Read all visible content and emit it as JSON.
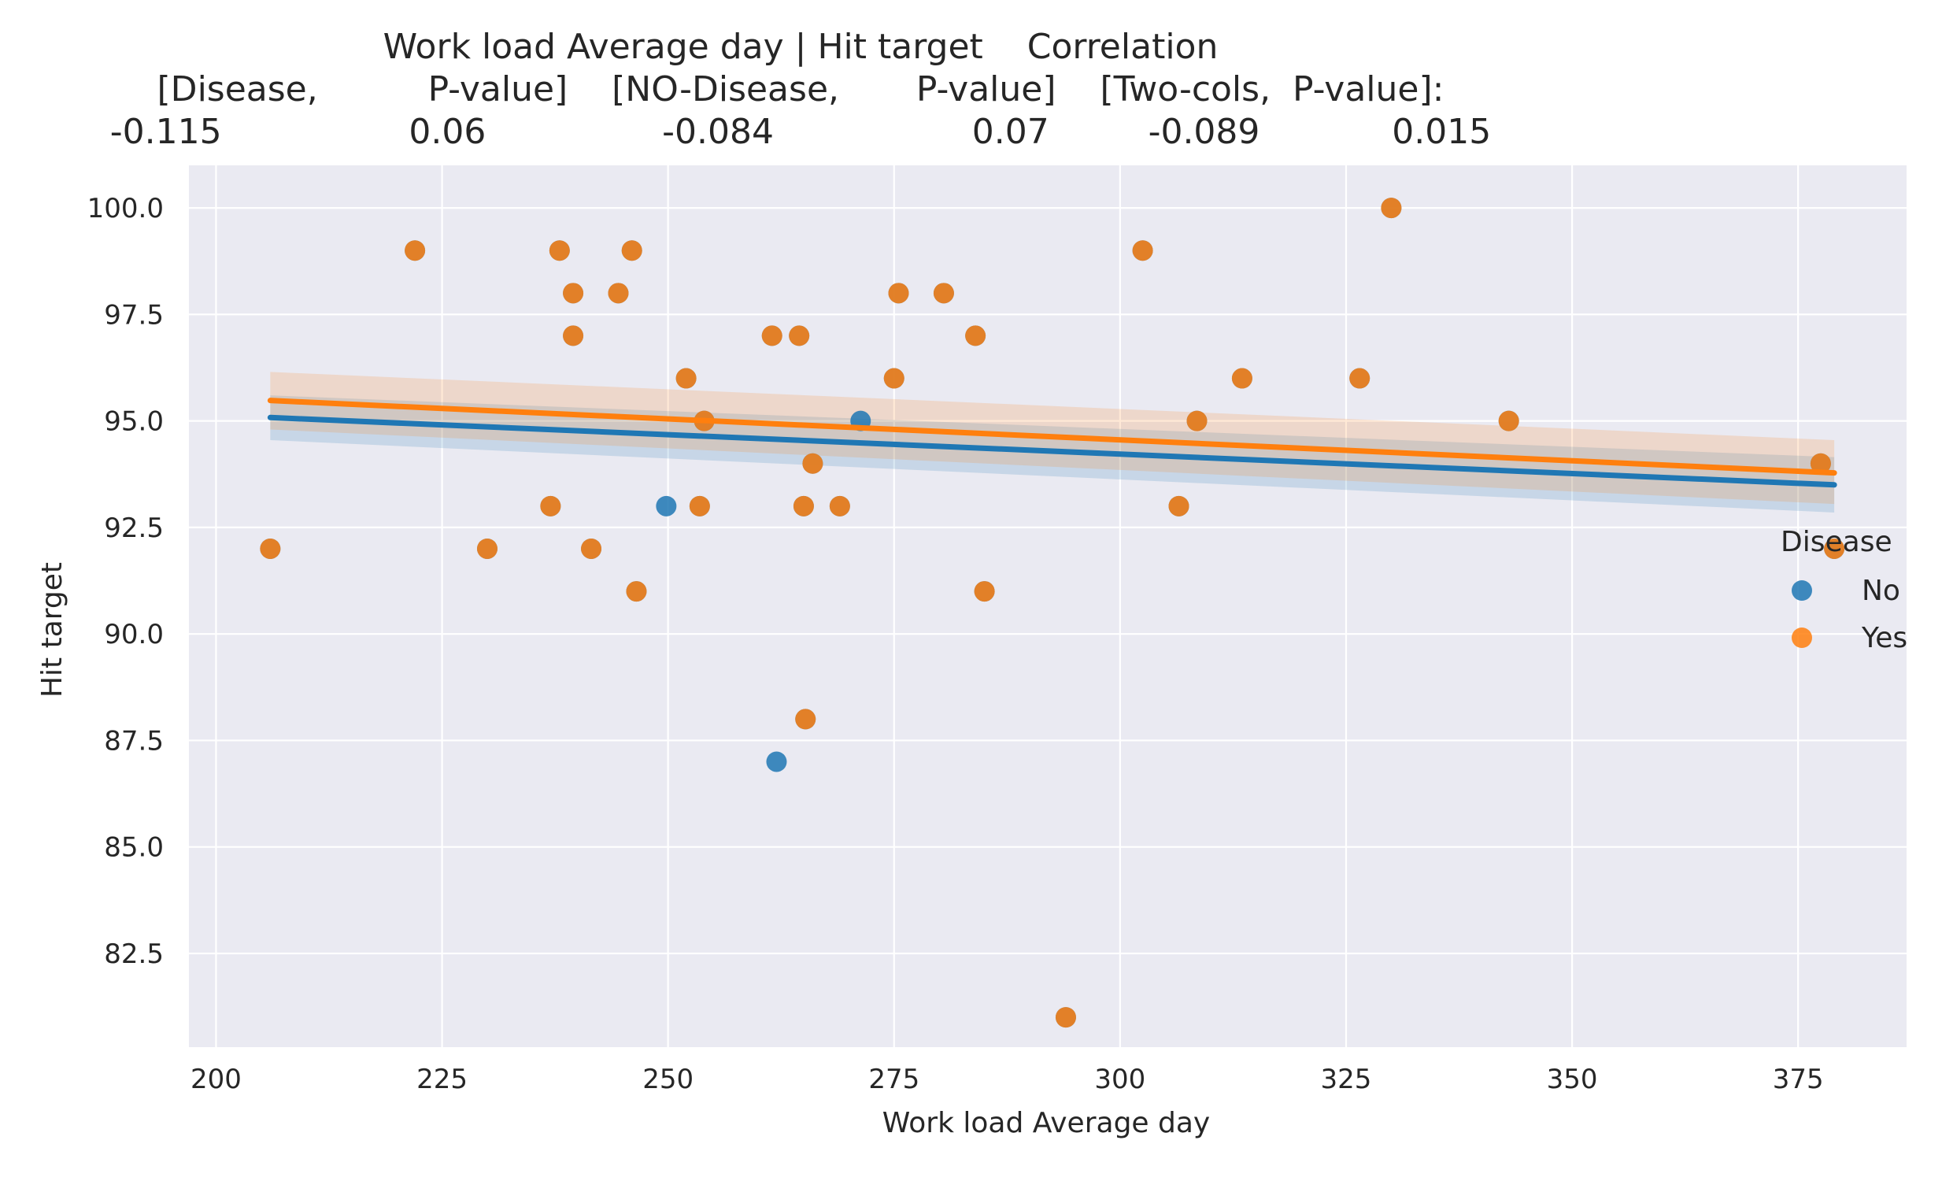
{
  "chart_data": {
    "type": "scatter",
    "title_lines": [
      "Work load Average day | Hit target    Correlation",
      "[Disease,          P-value]    [NO-Disease,       P-value]    [Two-cols,  P-value]:",
      "-0.115                 0.06                -0.084                  0.07         -0.089            0.015"
    ],
    "xlabel": "Work load Average day",
    "ylabel": "Hit target",
    "xlim": [
      197,
      387
    ],
    "ylim": [
      80.3,
      101.0
    ],
    "xticks": [
      "200",
      "225",
      "250",
      "275",
      "300",
      "325",
      "350",
      "375"
    ],
    "xtick_values": [
      200,
      225,
      250,
      275,
      300,
      325,
      350,
      375
    ],
    "yticks": [
      "82.5",
      "85.0",
      "87.5",
      "90.0",
      "92.5",
      "95.0",
      "97.5",
      "100.0"
    ],
    "ytick_values": [
      82.5,
      85.0,
      87.5,
      90.0,
      92.5,
      95.0,
      97.5,
      100.0
    ],
    "grid": true,
    "background": "#eaeaf2",
    "legend": {
      "title": "Disease",
      "placement": "right",
      "entries": [
        {
          "label": "No",
          "color": "#1f77b4"
        },
        {
          "label": "Yes",
          "color": "#ff7f0e"
        }
      ]
    },
    "series": [
      {
        "name": "No",
        "color": "#1f77b4",
        "points": [
          [
            206,
            92
          ],
          [
            222,
            99
          ],
          [
            230,
            92
          ],
          [
            237,
            93
          ],
          [
            238,
            99
          ],
          [
            239.5,
            98
          ],
          [
            239.5,
            97
          ],
          [
            241.5,
            92
          ],
          [
            244.5,
            98
          ],
          [
            246,
            99
          ],
          [
            246.5,
            91
          ],
          [
            249.8,
            93
          ],
          [
            252,
            96
          ],
          [
            253.5,
            93
          ],
          [
            254,
            95
          ],
          [
            261.5,
            97
          ],
          [
            262,
            87
          ],
          [
            264.5,
            97
          ],
          [
            265,
            93
          ],
          [
            265.2,
            88
          ],
          [
            266,
            94
          ],
          [
            269,
            93
          ],
          [
            271.3,
            95
          ],
          [
            275,
            96
          ],
          [
            275.5,
            98
          ],
          [
            280.5,
            98
          ],
          [
            284,
            97
          ],
          [
            285,
            91
          ],
          [
            294,
            81
          ],
          [
            302.5,
            99
          ],
          [
            306.5,
            93
          ],
          [
            308.5,
            95
          ],
          [
            313.5,
            96
          ],
          [
            326.5,
            96
          ],
          [
            330,
            100
          ],
          [
            343,
            95
          ],
          [
            377.5,
            94
          ],
          [
            379,
            92
          ]
        ],
        "regression": {
          "x": [
            206,
            379
          ],
          "y": [
            95.08,
            93.5
          ]
        },
        "ci_band": {
          "x": [
            206,
            379
          ],
          "lower": [
            94.55,
            92.85
          ],
          "upper": [
            95.6,
            94.15
          ]
        }
      },
      {
        "name": "Yes",
        "color": "#ff7f0e",
        "points": [
          [
            206,
            92
          ],
          [
            222,
            99
          ],
          [
            230,
            92
          ],
          [
            237,
            93
          ],
          [
            238,
            99
          ],
          [
            239.5,
            98
          ],
          [
            239.5,
            97
          ],
          [
            241.5,
            92
          ],
          [
            244.5,
            98
          ],
          [
            246,
            99
          ],
          [
            246.5,
            91
          ],
          [
            252,
            96
          ],
          [
            253.5,
            93
          ],
          [
            254,
            95
          ],
          [
            261.5,
            97
          ],
          [
            264.5,
            97
          ],
          [
            265,
            93
          ],
          [
            265.2,
            88
          ],
          [
            266,
            94
          ],
          [
            269,
            93
          ],
          [
            275,
            96
          ],
          [
            275.5,
            98
          ],
          [
            280.5,
            98
          ],
          [
            284,
            97
          ],
          [
            285,
            91
          ],
          [
            294,
            81
          ],
          [
            302.5,
            99
          ],
          [
            306.5,
            93
          ],
          [
            308.5,
            95
          ],
          [
            313.5,
            96
          ],
          [
            326.5,
            96
          ],
          [
            330,
            100
          ],
          [
            343,
            95
          ],
          [
            377.5,
            94
          ],
          [
            379,
            92
          ]
        ],
        "regression": {
          "x": [
            206,
            379
          ],
          "y": [
            95.48,
            93.78
          ]
        },
        "ci_band": {
          "x": [
            206,
            379
          ],
          "lower": [
            94.8,
            93.05
          ],
          "upper": [
            96.15,
            94.55
          ]
        }
      }
    ]
  }
}
